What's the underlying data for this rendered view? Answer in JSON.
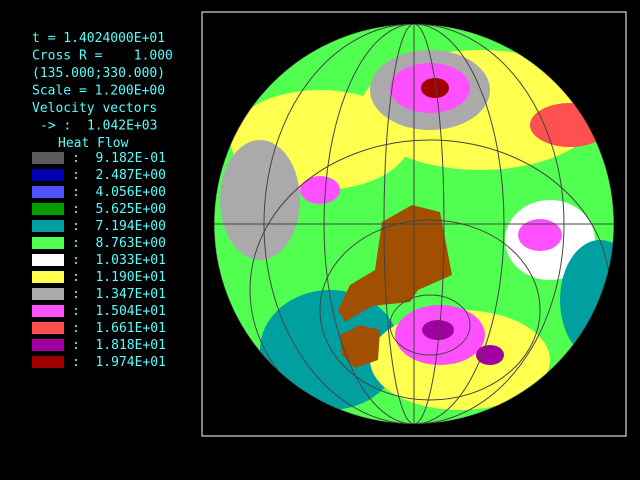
{
  "info": {
    "time": "t = 1.4024000E+01",
    "cross": "Cross R =    1.000",
    "coords": "(135.000;330.000)",
    "scale": "Scale = 1.200E+00",
    "velocity_title": "Velocity vectors",
    "velocity_scale": "-> :  1.042E+03"
  },
  "legend": {
    "title": "Heat Flow",
    "items": [
      {
        "color": "#5a5a5a",
        "label": ":  9.182E-01"
      },
      {
        "color": "#0000b4",
        "label": ":  2.487E+00"
      },
      {
        "color": "#5050ff",
        "label": ":  4.056E+00"
      },
      {
        "color": "#00a000",
        "label": ":  5.625E+00"
      },
      {
        "color": "#00a0a0",
        "label": ":  7.194E+00"
      },
      {
        "color": "#50ff50",
        "label": ":  8.763E+00"
      },
      {
        "color": "#ffffff",
        "label": ":  1.033E+01"
      },
      {
        "color": "#ffff50",
        "label": ":  1.190E+01"
      },
      {
        "color": "#aaaaaa",
        "label": ":  1.347E+01"
      },
      {
        "color": "#ff50ff",
        "label": ":  1.504E+01"
      },
      {
        "color": "#ff5050",
        "label": ":  1.661E+01"
      },
      {
        "color": "#a000a0",
        "label": ":  1.818E+01"
      },
      {
        "color": "#a00000",
        "label": ":  1.974E+01"
      }
    ]
  }
}
